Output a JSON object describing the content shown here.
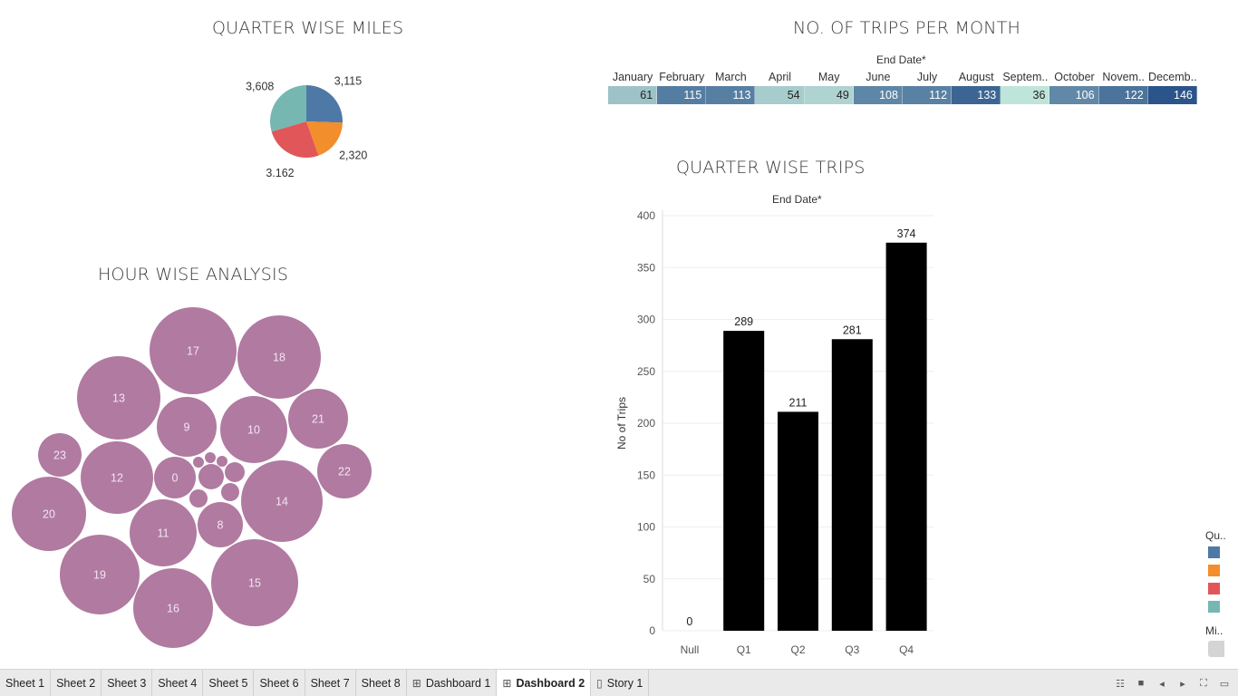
{
  "dashboard": {
    "pie_title": "QUARTER WISE MILES",
    "heatmap_title": "NO. OF TRIPS PER MONTH",
    "heatmap_header_caption": "End Date*",
    "bubble_title": "HOUR WISE ANALYSIS",
    "bar_title": "QUARTER WISE TRIPS",
    "bar_header_caption": "End Date*"
  },
  "colors": {
    "q1": "#4e79a7",
    "q2": "#f28e2b",
    "q3": "#e15759",
    "q4": "#76b7b2",
    "bubble": "#b07aa1",
    "bar": "#000000"
  },
  "chart_data": [
    {
      "type": "pie",
      "title": "QUARTER WISE MILES",
      "slices": [
        {
          "label": "3,115",
          "value": 3115,
          "color": "#4e79a7"
        },
        {
          "label": "2,320",
          "value": 2320,
          "color": "#f28e2b"
        },
        {
          "label": "3,162",
          "value": 3162,
          "color": "#e15759"
        },
        {
          "label": "3,608",
          "value": 3608,
          "color": "#76b7b2"
        }
      ]
    },
    {
      "type": "heatmap",
      "title": "NO. OF TRIPS PER MONTH",
      "xlabel": "End Date*",
      "categories": [
        "January",
        "February",
        "March",
        "April",
        "May",
        "June",
        "July",
        "August",
        "Septem..",
        "October",
        "Novem..",
        "Decemb.."
      ],
      "values": [
        61,
        115,
        113,
        54,
        49,
        108,
        112,
        133,
        36,
        106,
        122,
        146
      ]
    },
    {
      "type": "scatter",
      "title": "HOUR WISE ANALYSIS",
      "labels": [
        "0",
        "8",
        "9",
        "10",
        "11",
        "12",
        "13",
        "14",
        "15",
        "16",
        "17",
        "18",
        "19",
        "20",
        "21",
        "22",
        "23"
      ]
    },
    {
      "type": "bar",
      "title": "QUARTER WISE TRIPS",
      "xlabel": "End Date*",
      "ylabel": "No of Trips",
      "categories": [
        "Null",
        "Q1",
        "Q2",
        "Q3",
        "Q4"
      ],
      "values": [
        0,
        289,
        211,
        281,
        374
      ],
      "ylim": [
        0,
        400
      ],
      "yticks": [
        0,
        50,
        100,
        150,
        200,
        250,
        300,
        350,
        400
      ]
    }
  ],
  "legend": {
    "title": "Qu..",
    "colors": [
      "#4e79a7",
      "#f28e2b",
      "#e15759",
      "#76b7b2"
    ],
    "size_title": "Mi.."
  },
  "tabs": [
    {
      "label": "Sheet 1",
      "icon": "",
      "active": false
    },
    {
      "label": "Sheet 2",
      "icon": "",
      "active": false
    },
    {
      "label": "Sheet 3",
      "icon": "",
      "active": false
    },
    {
      "label": "Sheet 4",
      "icon": "",
      "active": false
    },
    {
      "label": "Sheet 5",
      "icon": "",
      "active": false
    },
    {
      "label": "Sheet 6",
      "icon": "",
      "active": false
    },
    {
      "label": "Sheet 7",
      "icon": "",
      "active": false
    },
    {
      "label": "Sheet 8",
      "icon": "",
      "active": false
    },
    {
      "label": "Dashboard 1",
      "icon": "dashboard-icon",
      "active": false
    },
    {
      "label": "Dashboard 2",
      "icon": "dashboard-icon",
      "active": true
    },
    {
      "label": "Story 1",
      "icon": "story-icon",
      "active": false
    }
  ],
  "controls": [
    "show-sheet-sorter-icon",
    "show-filmstrip-icon",
    "previous-sheet-icon",
    "next-sheet-icon",
    "fit-icon",
    "presentation-mode-icon"
  ]
}
